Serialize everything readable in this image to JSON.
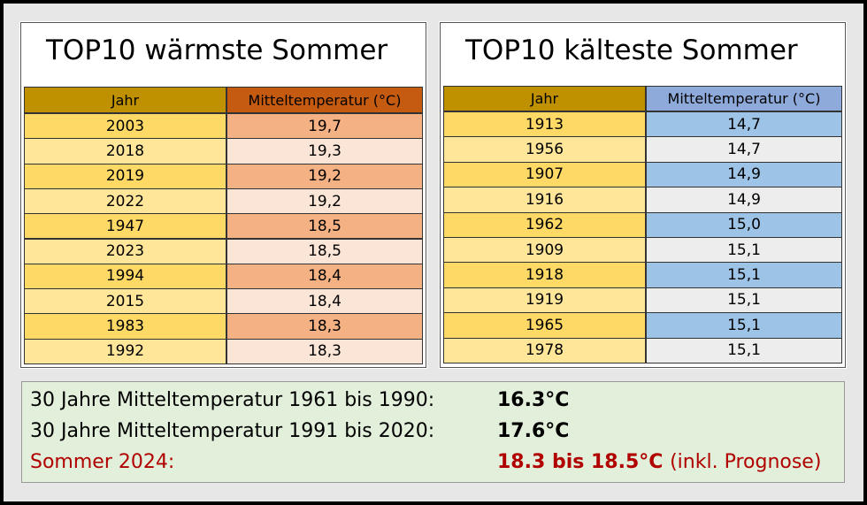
{
  "tables": [
    {
      "title": "TOP10 wärmste Sommer",
      "headers": [
        "Jahr",
        "Mitteltemperatur (°C)"
      ],
      "rows": [
        [
          "2003",
          "19,7"
        ],
        [
          "2018",
          "19,3"
        ],
        [
          "2019",
          "19,2"
        ],
        [
          "2022",
          "19,2"
        ],
        [
          "1947",
          "18,5"
        ],
        [
          "2023",
          "18,5"
        ],
        [
          "1994",
          "18,4"
        ],
        [
          "2015",
          "18,4"
        ],
        [
          "1983",
          "18,3"
        ],
        [
          "1992",
          "18,3"
        ]
      ]
    },
    {
      "title": "TOP10 kälteste Sommer",
      "headers": [
        "Jahr",
        "Mitteltemperatur (°C)"
      ],
      "rows": [
        [
          "1913",
          "14,7"
        ],
        [
          "1956",
          "14,7"
        ],
        [
          "1907",
          "14,9"
        ],
        [
          "1916",
          "14,9"
        ],
        [
          "1962",
          "15,0"
        ],
        [
          "1909",
          "15,1"
        ],
        [
          "1918",
          "15,1"
        ],
        [
          "1919",
          "15,1"
        ],
        [
          "1965",
          "15,1"
        ],
        [
          "1978",
          "15,1"
        ]
      ]
    }
  ],
  "summary": [
    {
      "label": "30 Jahre Mitteltemperatur 1961 bis 1990:",
      "value": "16.3°C"
    },
    {
      "label": "30 Jahre Mitteltemperatur 1991 bis 2020:",
      "value": "17.6°C"
    },
    {
      "label": "Sommer 2024:",
      "value": "18.3 bis 18.5°C",
      "note": "(inkl. Prognose)"
    }
  ]
}
